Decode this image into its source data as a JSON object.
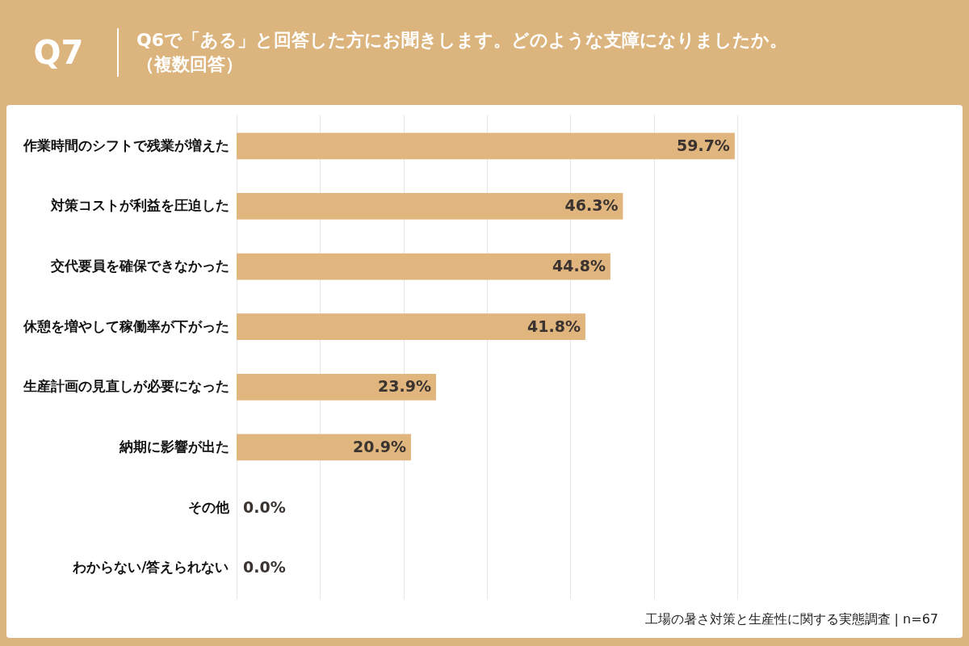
{
  "chart_data": {
    "type": "bar",
    "orientation": "horizontal",
    "title": "Q7",
    "subtitle": "Q6で「ある」と回答した方にお聞きします。どのような支障になりましたか。（複数回答）",
    "categories": [
      "作業時間のシフトで残業が増えた",
      "対策コストが利益を圧迫した",
      "交代要員を確保できなかった",
      "休憩を増やして稼働率が下がった",
      "生産計画の見直しが必要になった",
      "納期に影響が出た",
      "その他",
      "わからない/答えられない"
    ],
    "values": [
      59.7,
      46.3,
      44.8,
      41.8,
      23.9,
      20.9,
      0.0,
      0.0
    ],
    "value_labels": [
      "59.7%",
      "46.3%",
      "44.8%",
      "41.8%",
      "23.9%",
      "20.9%",
      "0.0%",
      "0.0%"
    ],
    "color": "#e0b57e",
    "xlim": [
      0,
      60
    ],
    "xticks": [
      {
        "value": 0,
        "label": null
      },
      {
        "value": 10,
        "label": null
      },
      {
        "value": 20,
        "label": null
      },
      {
        "value": 30,
        "label": null
      },
      {
        "value": 40,
        "label": null
      },
      {
        "value": 50,
        "label": null
      },
      {
        "value": 60,
        "label": null
      }
    ],
    "grid": "x",
    "tick_labels": "y",
    "annotations": [
      "工場の暑さ対策と生産性に関する実態調査 | n=67"
    ]
  }
}
